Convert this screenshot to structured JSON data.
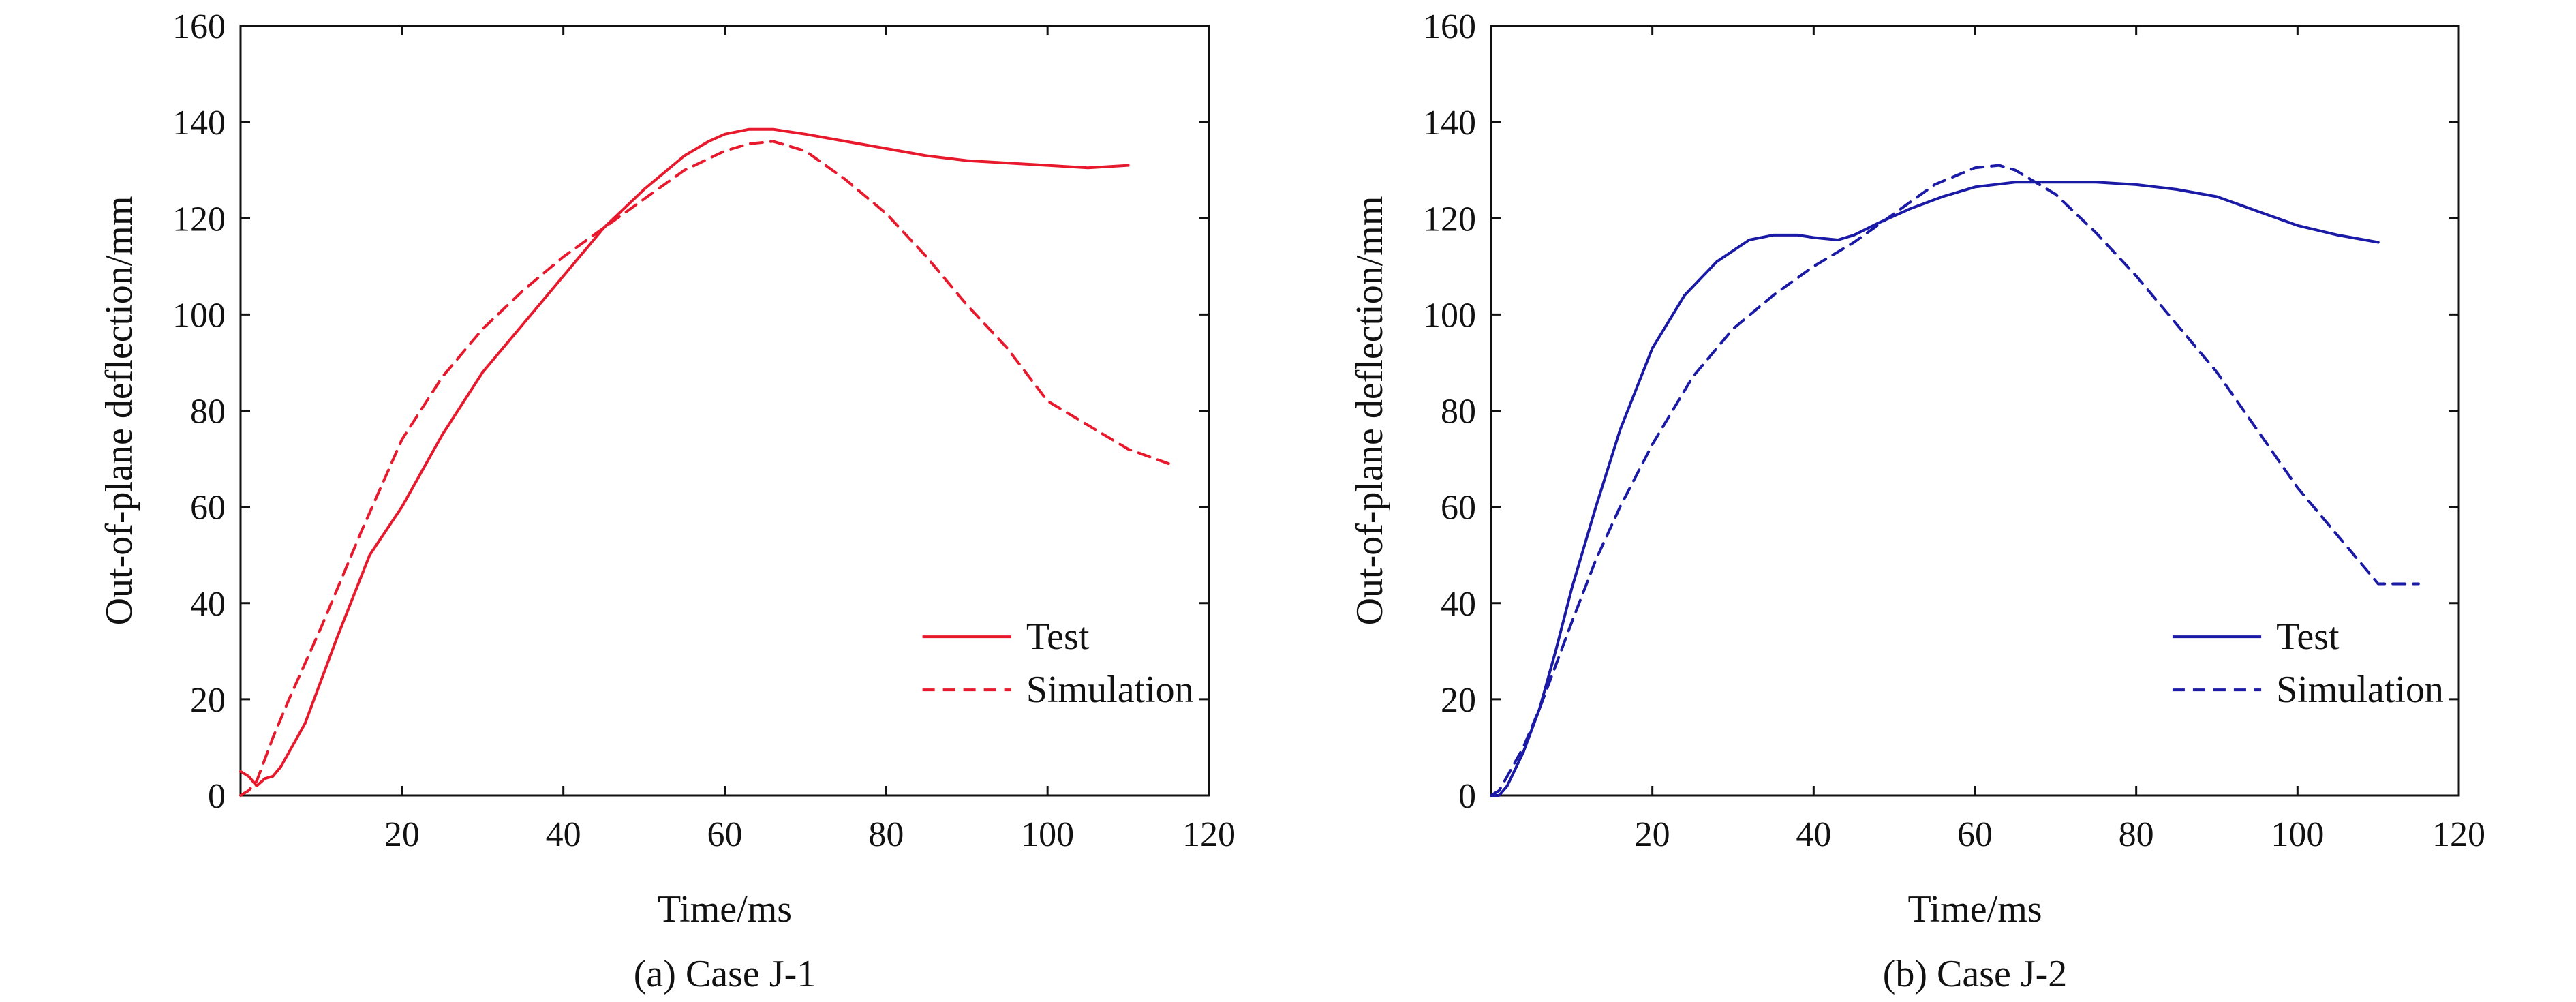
{
  "chart_data": [
    {
      "type": "line",
      "caption": "(a) Case J-1",
      "xlabel": "Time/ms",
      "ylabel": "Out-of-plane deflection/mm",
      "xlim": [
        0,
        120
      ],
      "ylim": [
        0,
        160
      ],
      "xticks": [
        20,
        40,
        60,
        80,
        100,
        120
      ],
      "yticks": [
        0,
        20,
        40,
        60,
        80,
        100,
        120,
        140,
        160
      ],
      "grid": false,
      "legend_position": "bottom-right",
      "series": [
        {
          "name": "Test",
          "style": "solid",
          "color": "#e8192c",
          "x": [
            0,
            1,
            2,
            3,
            4,
            5,
            8,
            12,
            16,
            20,
            25,
            30,
            35,
            40,
            45,
            50,
            55,
            58,
            60,
            63,
            66,
            70,
            75,
            80,
            85,
            90,
            95,
            100,
            105,
            110
          ],
          "y": [
            5,
            4,
            2,
            3.5,
            4,
            6,
            15,
            33,
            50,
            60,
            75,
            88,
            98,
            108,
            118,
            126,
            133,
            136,
            137.5,
            138.5,
            138.5,
            137.5,
            136,
            134.5,
            133,
            132,
            131.5,
            131,
            130.5,
            131
          ]
        },
        {
          "name": "Simulation",
          "style": "dashed",
          "color": "#e8192c",
          "x": [
            0,
            1,
            2,
            4,
            6,
            10,
            15,
            20,
            25,
            30,
            35,
            40,
            45,
            50,
            55,
            60,
            63,
            66,
            70,
            75,
            80,
            85,
            90,
            95,
            100,
            105,
            110,
            115
          ],
          "y": [
            0,
            1,
            3,
            12,
            20,
            35,
            55,
            74,
            87,
            97,
            105,
            112,
            118,
            124,
            130,
            134,
            135.5,
            136,
            134,
            128,
            121,
            112,
            102,
            93,
            82,
            77,
            72,
            69
          ]
        }
      ]
    },
    {
      "type": "line",
      "caption": "(b) Case J-2",
      "xlabel": "Time/ms",
      "ylabel": "Out-of-plane deflection/mm",
      "xlim": [
        0,
        120
      ],
      "ylim": [
        0,
        160
      ],
      "xticks": [
        20,
        40,
        60,
        80,
        100,
        120
      ],
      "yticks": [
        0,
        20,
        40,
        60,
        80,
        100,
        120,
        140,
        160
      ],
      "grid": false,
      "legend_position": "bottom-right",
      "series": [
        {
          "name": "Test",
          "style": "solid",
          "color": "#1a1aa6",
          "x": [
            0,
            1,
            2,
            4,
            6,
            8,
            10,
            13,
            16,
            20,
            24,
            28,
            32,
            35,
            38,
            40,
            43,
            45,
            48,
            52,
            56,
            60,
            65,
            70,
            75,
            80,
            85,
            90,
            95,
            100,
            105,
            110
          ],
          "y": [
            0,
            0,
            2,
            9,
            18,
            30,
            43,
            60,
            76,
            93,
            104,
            111,
            115.5,
            116.5,
            116.5,
            116,
            115.5,
            116.5,
            119,
            122,
            124.5,
            126.5,
            127.5,
            127.5,
            127.5,
            127,
            126,
            124.5,
            121.5,
            118.5,
            116.5,
            115
          ]
        },
        {
          "name": "Simulation",
          "style": "dashed",
          "color": "#1a1aa6",
          "x": [
            0,
            1,
            2,
            4,
            6,
            8,
            10,
            13,
            16,
            20,
            25,
            30,
            35,
            40,
            45,
            50,
            55,
            60,
            63,
            65,
            70,
            75,
            80,
            85,
            90,
            95,
            100,
            105,
            110,
            115
          ],
          "y": [
            0,
            1,
            4,
            10,
            18,
            27,
            36,
            49,
            60,
            73,
            87,
            97,
            104,
            110,
            115,
            121,
            127,
            130.5,
            131,
            130,
            125,
            117,
            108,
            98,
            88,
            76,
            64,
            54,
            44,
            44
          ]
        }
      ]
    }
  ]
}
